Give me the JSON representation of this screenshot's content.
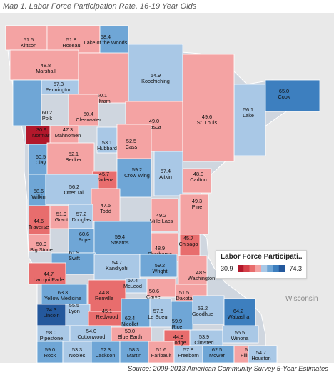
{
  "title": "Map 1. Labor Force Participation Rate, 16-19 Year Olds",
  "source": "Source: 2009-2013 American Community Survey 5-Year Estimates",
  "region_label": "Wisconsin",
  "legend": {
    "title": "Labor Force Participati..",
    "min_label": "30.9",
    "max_label": "74.3",
    "min": 30.9,
    "max": 74.3,
    "colors": [
      "#b2182b",
      "#d6414a",
      "#e86d6d",
      "#f4a3a3",
      "#a9c8e6",
      "#6fa6d6",
      "#3d7fbf",
      "#24589c"
    ]
  },
  "counties": [
    {
      "name": "Kittson",
      "value": "51.5"
    },
    {
      "name": "Roseau",
      "value": "51.8"
    },
    {
      "name": "Lake of the Woods",
      "value": "58.4"
    },
    {
      "name": "Marshall",
      "value": "48.8"
    },
    {
      "name": "Pennington",
      "value": "57.3"
    },
    {
      "name": "Koochiching",
      "value": "54.9"
    },
    {
      "name": "Beltrami",
      "value": "50.1"
    },
    {
      "name": "Polk",
      "value": "60.2"
    },
    {
      "name": "Clearwater",
      "value": "50.4"
    },
    {
      "name": "Lake",
      "value": "56.1"
    },
    {
      "name": "Cook",
      "value": "65.0"
    },
    {
      "name": "Itasca",
      "value": "49.0"
    },
    {
      "name": "St. Louis",
      "value": "49.6"
    },
    {
      "name": "Norman",
      "value": "30.9"
    },
    {
      "name": "Mahnomen",
      "value": "47.3"
    },
    {
      "name": "Hubbard",
      "value": "53.1"
    },
    {
      "name": "Cass",
      "value": "52.5"
    },
    {
      "name": "Clay",
      "value": "60.5"
    },
    {
      "name": "Becker",
      "value": "52.1"
    },
    {
      "name": "Aitkin",
      "value": "57.4"
    },
    {
      "name": "Carlton",
      "value": "48.0"
    },
    {
      "name": "Wadena",
      "value": "45.7"
    },
    {
      "name": "Crow Wing",
      "value": "59.2"
    },
    {
      "name": "Wilkin",
      "value": "58.6"
    },
    {
      "name": "Otter Tail",
      "value": "56.2"
    },
    {
      "name": "Pine",
      "value": "49.3"
    },
    {
      "name": "Todd",
      "value": "47.5"
    },
    {
      "name": "Traverse",
      "value": "44.6"
    },
    {
      "name": "Grant",
      "value": "51.9"
    },
    {
      "name": "Douglas",
      "value": "57.2"
    },
    {
      "name": "Mille Lacs",
      "value": "49.2"
    },
    {
      "name": "Pope",
      "value": "60.6"
    },
    {
      "name": "Stearns",
      "value": "59.4"
    },
    {
      "name": "Chisago",
      "value": "45.7"
    },
    {
      "name": "Big Stone",
      "value": "50.9"
    },
    {
      "name": "Sherburne",
      "value": "48.9"
    },
    {
      "name": "Swift",
      "value": "61.9"
    },
    {
      "name": "Kandiyohi",
      "value": "54.7"
    },
    {
      "name": "Wright",
      "value": "59.2"
    },
    {
      "name": "Washington",
      "value": "48.9"
    },
    {
      "name": "Lac qui Parle",
      "value": "44.7"
    },
    {
      "name": "Yellow Medicine",
      "value": "63.3"
    },
    {
      "name": "Renville",
      "value": "44.8"
    },
    {
      "name": "McLeod",
      "value": "57.4"
    },
    {
      "name": "Carver",
      "value": "50.6"
    },
    {
      "name": "Dakota",
      "value": "51.5"
    },
    {
      "name": "Lincoln",
      "value": "74.3"
    },
    {
      "name": "Lyon",
      "value": "55.5"
    },
    {
      "name": "Redwood",
      "value": "45.1"
    },
    {
      "name": "Nicollet",
      "value": "62.4"
    },
    {
      "name": "Le Sueur",
      "value": "57.5"
    },
    {
      "name": "Rice",
      "value": "59.9"
    },
    {
      "name": "Goodhue",
      "value": "53.2"
    },
    {
      "name": "Wabasha",
      "value": "64.2"
    },
    {
      "name": "Pipestone",
      "value": "58.0"
    },
    {
      "name": "Cottonwood",
      "value": "54.0"
    },
    {
      "name": "Blue Earth",
      "value": "50.0"
    },
    {
      "name": "Dodge",
      "value": "44.8"
    },
    {
      "name": "Olmsted",
      "value": "53.9"
    },
    {
      "name": "Winona",
      "value": "55.5"
    },
    {
      "name": "Rock",
      "value": "59.0"
    },
    {
      "name": "Nobles",
      "value": "53.3"
    },
    {
      "name": "Jackson",
      "value": "62.3"
    },
    {
      "name": "Martin",
      "value": "58.3"
    },
    {
      "name": "Faribault",
      "value": "51.6"
    },
    {
      "name": "Freeborn",
      "value": "57.8"
    },
    {
      "name": "Mower",
      "value": "62.5"
    },
    {
      "name": "Fillmore",
      "value": "50.0"
    },
    {
      "name": "Houston",
      "value": "54.7"
    }
  ]
}
